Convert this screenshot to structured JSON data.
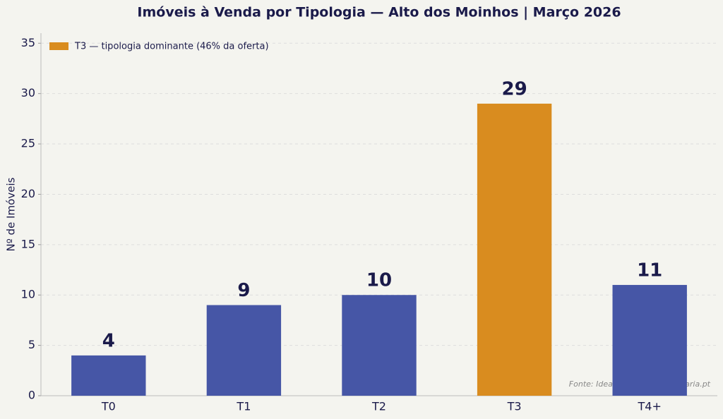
{
  "chart_data": {
    "type": "bar",
    "title": "Imóveis à Venda por Tipologia — Alto dos Moinhos | Março 2026",
    "ylabel": "Nº de Imóveis",
    "categories": [
      "T0",
      "T1",
      "T2",
      "T3",
      "T4+"
    ],
    "values": [
      4,
      9,
      10,
      29,
      11
    ],
    "colors": [
      "#4656a6",
      "#4656a6",
      "#4656a6",
      "#d98c1f",
      "#4656a6"
    ],
    "legend": {
      "label": "T3 — tipologia dominante (46% da oferta)",
      "color": "#d98c1f",
      "position": "upper left"
    },
    "source": "Fonte: Idealista | primeimobiliaria.pt",
    "ylim": [
      0,
      36
    ],
    "yticks": [
      0,
      5,
      10,
      15,
      20,
      25,
      30,
      35
    ],
    "grid": true
  }
}
